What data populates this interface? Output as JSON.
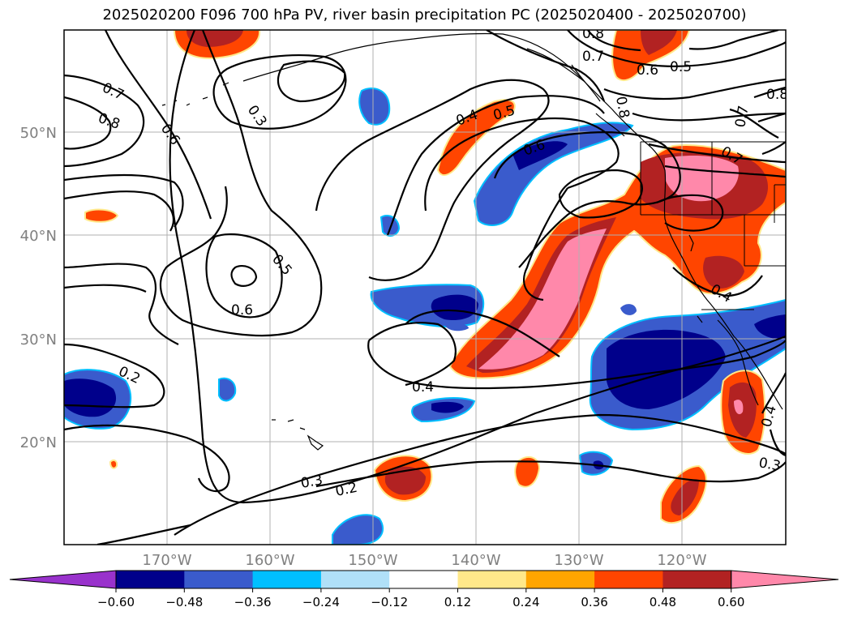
{
  "title": "2025020200 F096 700 hPa PV, river basin precipitation PC (2025020400 - 2025020700)",
  "lon_labels": [
    "170°W",
    "160°W",
    "150°W",
    "140°W",
    "130°W",
    "120°W"
  ],
  "lat_labels": [
    "50°N",
    "40°N",
    "30°N",
    "20°N"
  ],
  "colorbar": {
    "ticks": [
      "−0.60",
      "−0.48",
      "−0.36",
      "−0.24",
      "−0.12",
      "0.12",
      "0.24",
      "0.36",
      "0.48",
      "0.60"
    ],
    "colors": [
      "#9932cc",
      "#00008b",
      "#3a5bcc",
      "#00bfff",
      "#b0e0f8",
      "#ffffff",
      "#ffe88a",
      "#ffa500",
      "#ff4500",
      "#b22222",
      "#ff88aa"
    ]
  },
  "contour_labels": [
    "0.8",
    "0.7",
    "0.6",
    "0.5",
    "0.7",
    "0.8",
    "0.6",
    "0.3",
    "0.4",
    "0.5",
    "0.6",
    "0.8",
    "0.7",
    "0.8",
    "0.7",
    "0.5",
    "0.6",
    "0.4",
    "0.2",
    "0.4",
    "0.3",
    "0.2",
    "0.3",
    "0.4"
  ]
}
